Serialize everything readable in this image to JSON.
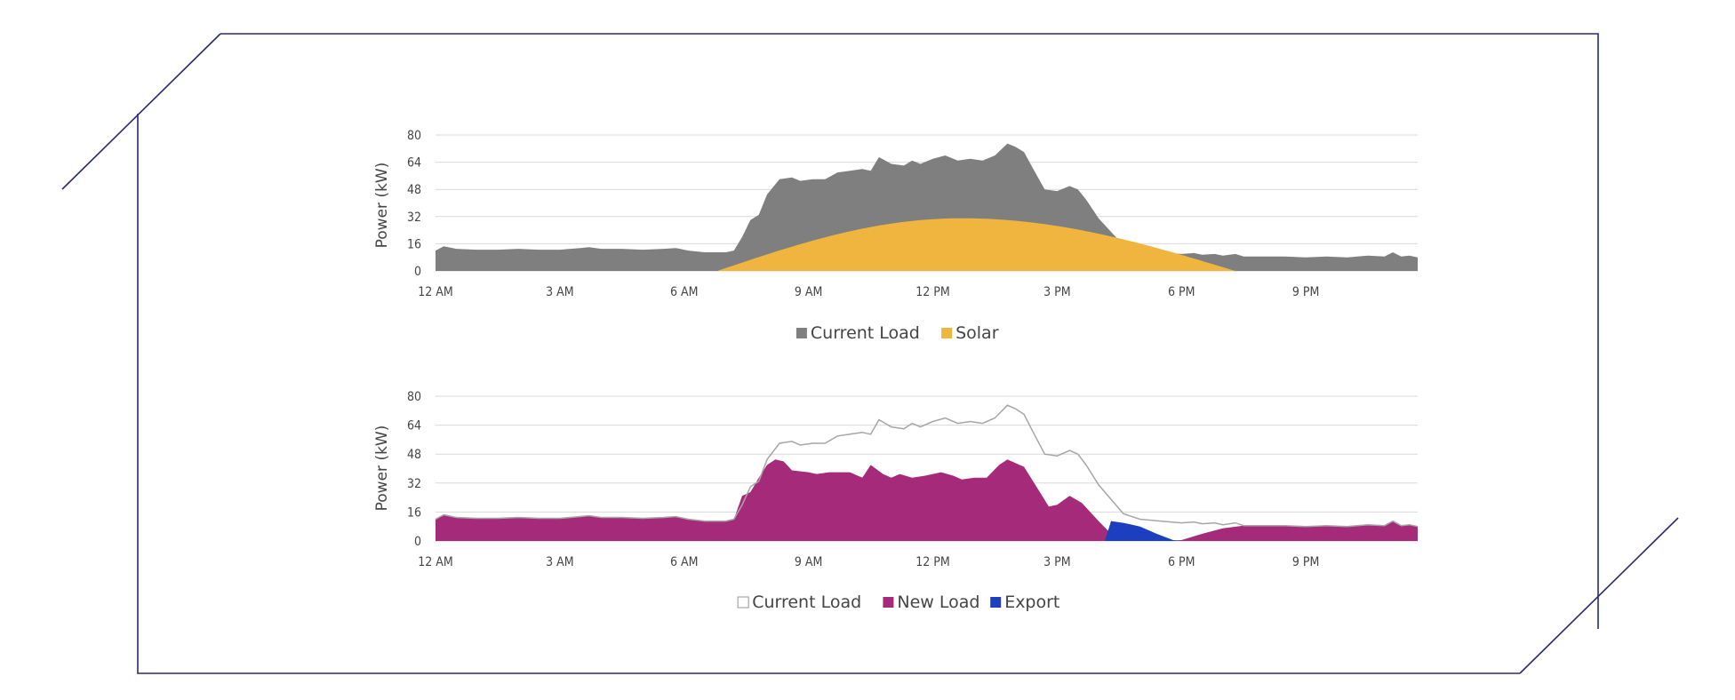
{
  "colors": {
    "frame": "#2b2a6e",
    "grid": "#d9d9d9",
    "current_load_fill": "#7f7f7f",
    "solar": "#f0b53f",
    "new_load": "#a52a7a",
    "export": "#1c3fbf",
    "outline": "#a6a6a6"
  },
  "chart_data": [
    {
      "type": "area",
      "ylabel": "Power (kW)",
      "xlabel": "",
      "x_unit": "hour of day",
      "xlim": [
        0,
        23.7
      ],
      "ylim": [
        0,
        80
      ],
      "yticks": [
        0,
        16,
        32,
        48,
        64,
        80
      ],
      "xticks": [
        {
          "x": 0,
          "label": "12 AM"
        },
        {
          "x": 3,
          "label": "3 AM"
        },
        {
          "x": 6,
          "label": "6 AM"
        },
        {
          "x": 9,
          "label": "9 AM"
        },
        {
          "x": 12,
          "label": "12 PM"
        },
        {
          "x": 15,
          "label": "3 PM"
        },
        {
          "x": 18,
          "label": "6 PM"
        },
        {
          "x": 21,
          "label": "9 PM"
        }
      ],
      "grid": true,
      "legend_position": "bottom",
      "series": [
        {
          "name": "Current Load",
          "key": "current",
          "style": "filled-area",
          "color": "#7f7f7f",
          "points": [
            [
              0,
              12
            ],
            [
              0.2,
              14.5
            ],
            [
              0.5,
              13
            ],
            [
              1,
              12.5
            ],
            [
              1.5,
              12.5
            ],
            [
              2,
              13
            ],
            [
              2.5,
              12.5
            ],
            [
              3,
              12.5
            ],
            [
              3.5,
              13.5
            ],
            [
              3.7,
              14
            ],
            [
              4,
              13
            ],
            [
              4.5,
              13
            ],
            [
              5,
              12.5
            ],
            [
              5.5,
              13
            ],
            [
              5.8,
              13.5
            ],
            [
              6.1,
              12
            ],
            [
              6.5,
              11
            ],
            [
              7,
              11
            ],
            [
              7.2,
              12
            ],
            [
              7.4,
              20
            ],
            [
              7.6,
              30
            ],
            [
              7.8,
              33
            ],
            [
              8,
              45
            ],
            [
              8.3,
              54
            ],
            [
              8.6,
              55
            ],
            [
              8.8,
              53
            ],
            [
              9.1,
              54
            ],
            [
              9.4,
              54
            ],
            [
              9.7,
              58
            ],
            [
              10,
              59
            ],
            [
              10.3,
              60
            ],
            [
              10.5,
              59
            ],
            [
              10.7,
              67
            ],
            [
              11,
              63
            ],
            [
              11.3,
              62
            ],
            [
              11.5,
              65
            ],
            [
              11.7,
              63
            ],
            [
              12,
              66
            ],
            [
              12.3,
              68
            ],
            [
              12.6,
              65
            ],
            [
              12.9,
              66
            ],
            [
              13.2,
              65
            ],
            [
              13.5,
              68
            ],
            [
              13.8,
              75
            ],
            [
              14,
              73
            ],
            [
              14.2,
              70
            ],
            [
              14.4,
              61
            ],
            [
              14.7,
              48
            ],
            [
              15,
              47
            ],
            [
              15.3,
              50
            ],
            [
              15.5,
              48
            ],
            [
              15.7,
              42
            ],
            [
              16,
              31
            ],
            [
              16.3,
              23
            ],
            [
              16.6,
              15
            ],
            [
              17,
              12
            ],
            [
              17.5,
              11
            ],
            [
              18,
              10
            ],
            [
              18.3,
              10.5
            ],
            [
              18.5,
              9.5
            ],
            [
              18.8,
              10
            ],
            [
              19,
              9
            ],
            [
              19.3,
              10
            ],
            [
              19.5,
              8.5
            ],
            [
              20,
              8.5
            ],
            [
              20.5,
              8.5
            ],
            [
              21,
              8
            ],
            [
              21.5,
              8.5
            ],
            [
              22,
              8
            ],
            [
              22.5,
              9
            ],
            [
              22.9,
              8.5
            ],
            [
              23.1,
              11
            ],
            [
              23.3,
              8.5
            ],
            [
              23.5,
              9
            ],
            [
              23.7,
              8
            ]
          ]
        },
        {
          "name": "Solar",
          "key": "solar",
          "style": "filled-area",
          "color": "#f0b53f",
          "daylight": {
            "start": 6.8,
            "end": 19.3,
            "peak_hour": 12.7,
            "peak": 31
          }
        }
      ]
    },
    {
      "type": "area",
      "ylabel": "Power (kW)",
      "xlabel": "",
      "x_unit": "hour of day",
      "xlim": [
        0,
        23.7
      ],
      "ylim": [
        0,
        80
      ],
      "yticks": [
        0,
        16,
        32,
        48,
        64,
        80
      ],
      "xticks": [
        {
          "x": 0,
          "label": "12 AM"
        },
        {
          "x": 3,
          "label": "3 AM"
        },
        {
          "x": 6,
          "label": "6 AM"
        },
        {
          "x": 9,
          "label": "9 AM"
        },
        {
          "x": 12,
          "label": "12 PM"
        },
        {
          "x": 15,
          "label": "3 PM"
        },
        {
          "x": 18,
          "label": "6 PM"
        },
        {
          "x": 21,
          "label": "9 PM"
        }
      ],
      "grid": true,
      "legend_position": "bottom",
      "series": [
        {
          "name": "Current Load",
          "key": "current",
          "style": "outline",
          "color": "#a6a6a6",
          "same_as": "current_load_top_panel"
        },
        {
          "name": "New Load",
          "key": "new",
          "style": "filled-area",
          "color": "#a52a7a",
          "points": [
            [
              0,
              12
            ],
            [
              0.2,
              14.5
            ],
            [
              0.5,
              13
            ],
            [
              1,
              12.5
            ],
            [
              1.5,
              12.5
            ],
            [
              2,
              13
            ],
            [
              2.5,
              12.5
            ],
            [
              3,
              12.5
            ],
            [
              3.5,
              13.5
            ],
            [
              3.7,
              14
            ],
            [
              4,
              13
            ],
            [
              4.5,
              13
            ],
            [
              5,
              12.5
            ],
            [
              5.5,
              13
            ],
            [
              5.8,
              13.5
            ],
            [
              6.1,
              12
            ],
            [
              6.5,
              11
            ],
            [
              7,
              11
            ],
            [
              7.2,
              12
            ],
            [
              7.4,
              25
            ],
            [
              7.6,
              27
            ],
            [
              7.8,
              35
            ],
            [
              8,
              42
            ],
            [
              8.2,
              45
            ],
            [
              8.4,
              44
            ],
            [
              8.6,
              39
            ],
            [
              9,
              38
            ],
            [
              9.2,
              37
            ],
            [
              9.5,
              38
            ],
            [
              10,
              38
            ],
            [
              10.3,
              35
            ],
            [
              10.5,
              42
            ],
            [
              10.8,
              37
            ],
            [
              11,
              35
            ],
            [
              11.2,
              37
            ],
            [
              11.5,
              35
            ],
            [
              11.8,
              36
            ],
            [
              12,
              37
            ],
            [
              12.2,
              38
            ],
            [
              12.5,
              36
            ],
            [
              12.7,
              34
            ],
            [
              13,
              35
            ],
            [
              13.3,
              35
            ],
            [
              13.6,
              42
            ],
            [
              13.8,
              45
            ],
            [
              14,
              43
            ],
            [
              14.2,
              41
            ],
            [
              14.5,
              30
            ],
            [
              14.8,
              19
            ],
            [
              15,
              20
            ],
            [
              15.3,
              25
            ],
            [
              15.6,
              21
            ],
            [
              16,
              11
            ],
            [
              16.3,
              4
            ],
            [
              16.6,
              0
            ],
            [
              17.5,
              0
            ],
            [
              18,
              0.5
            ],
            [
              18.5,
              4
            ],
            [
              19,
              7
            ],
            [
              19.5,
              8.5
            ],
            [
              20,
              8.5
            ],
            [
              20.5,
              8.5
            ],
            [
              21,
              8
            ],
            [
              21.5,
              8.5
            ],
            [
              22,
              8
            ],
            [
              22.5,
              9
            ],
            [
              22.9,
              8.5
            ],
            [
              23.1,
              11
            ],
            [
              23.3,
              8.5
            ],
            [
              23.5,
              9
            ],
            [
              23.7,
              8
            ]
          ]
        },
        {
          "name": "Export",
          "key": "export",
          "style": "filled-area",
          "color": "#1c3fbf",
          "points": [
            [
              16.15,
              0
            ],
            [
              16.3,
              11
            ],
            [
              16.6,
              10
            ],
            [
              17,
              8
            ],
            [
              17.4,
              4
            ],
            [
              17.8,
              0.5
            ],
            [
              18,
              0
            ]
          ]
        }
      ]
    }
  ]
}
